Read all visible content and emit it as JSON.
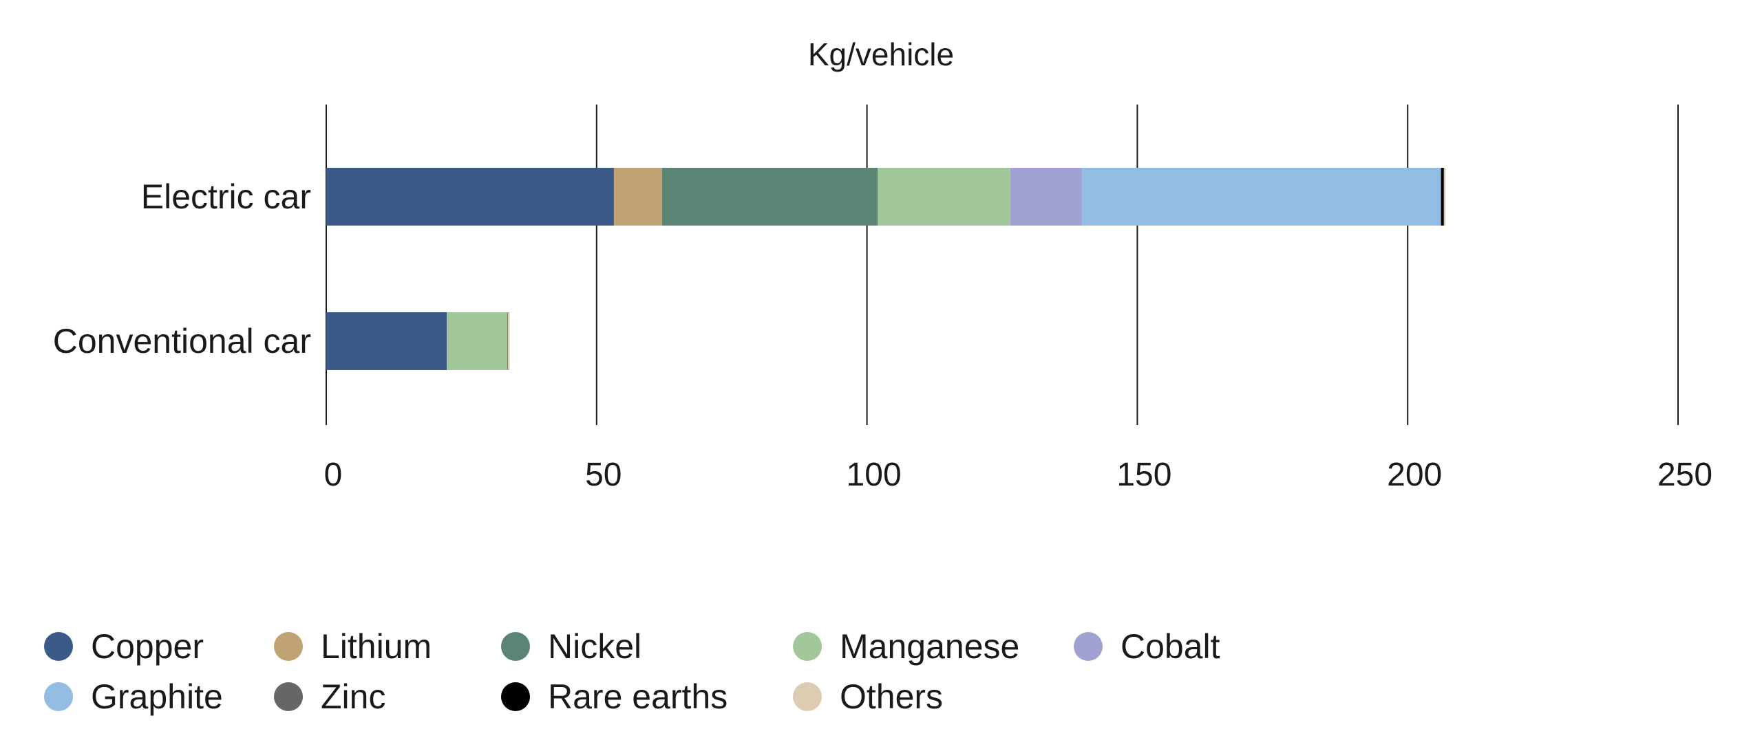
{
  "chart_data": {
    "type": "bar",
    "orientation": "horizontal",
    "stacked": true,
    "title": "Kg/vehicle",
    "categories": [
      "Electric car",
      "Conventional car"
    ],
    "xlim": [
      0,
      250
    ],
    "x_ticks": [
      0,
      50,
      100,
      150,
      200,
      250
    ],
    "grid": "vertical",
    "legend_position": "bottom",
    "series": [
      {
        "name": "Copper",
        "color": "#3c5a88",
        "values": [
          53.2,
          22.3
        ]
      },
      {
        "name": "Lithium",
        "color": "#c0a274",
        "values": [
          8.9,
          0
        ]
      },
      {
        "name": "Nickel",
        "color": "#5a8574",
        "values": [
          39.9,
          0
        ]
      },
      {
        "name": "Manganese",
        "color": "#a2c79a",
        "values": [
          24.5,
          11.2
        ]
      },
      {
        "name": "Cobalt",
        "color": "#a2a2d2",
        "values": [
          13.3,
          0
        ]
      },
      {
        "name": "Graphite",
        "color": "#93bde2",
        "values": [
          66.3,
          0
        ]
      },
      {
        "name": "Zinc",
        "color": "#666666",
        "values": [
          0.1,
          0.1
        ]
      },
      {
        "name": "Rare earths",
        "color": "#000000",
        "values": [
          0.5,
          0
        ]
      },
      {
        "name": "Others",
        "color": "#dccdb2",
        "values": [
          0.3,
          0.3
        ]
      }
    ]
  }
}
